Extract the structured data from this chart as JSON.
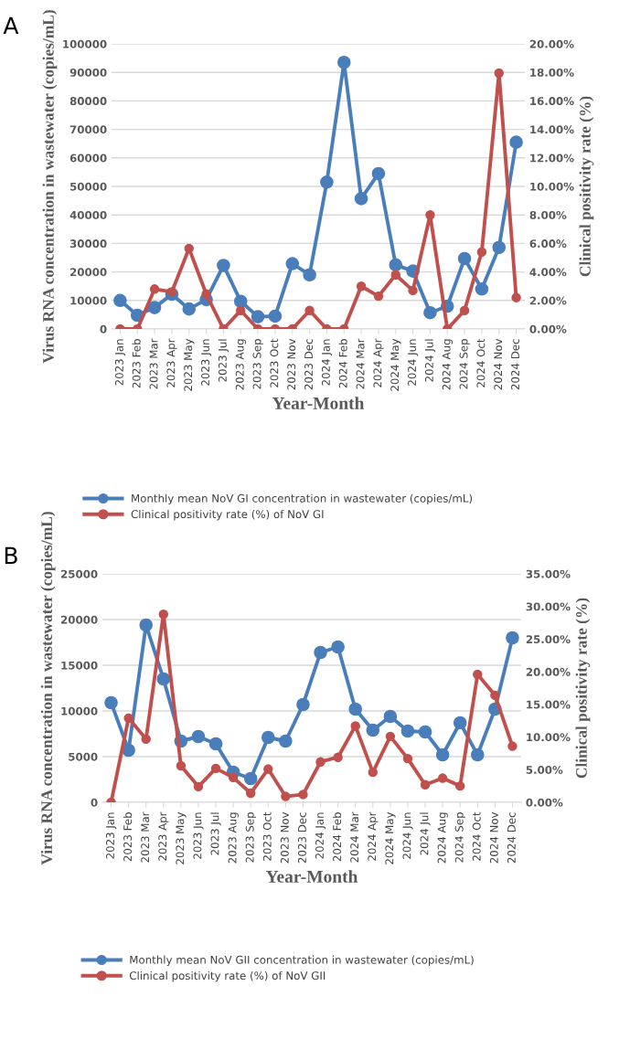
{
  "chart_data": [
    {
      "type": "line",
      "annotations": [
        "A"
      ],
      "xlabel": "Year-Month",
      "ylabel": "Virus RNA concentration in wastewater (copies/mL)",
      "y2label": "Clinical positivity rate (%)",
      "categories": [
        "2023 Jan",
        "2023 Feb",
        "2023 Mar",
        "2023 Apr",
        "2023 May",
        "2023 Jun",
        "2023 Jul",
        "2023 Aug",
        "2023 Sep",
        "2023 Oct",
        "2023 Nov",
        "2023 Dec",
        "2024 Jan",
        "2024 Feb",
        "2024 Mar",
        "2024 Apr",
        "2024 May",
        "2024 Jun",
        "2024 Jul",
        "2024 Aug",
        "2024 Sep",
        "2024 Oct",
        "2024 Nov",
        "2024 Dec"
      ],
      "series": [
        {
          "name": "Monthly mean NoV GI concentration in wastewater (copies/mL)",
          "color": "#4a7ebb",
          "values": [
            10000,
            4800,
            7500,
            12200,
            7000,
            10300,
            22300,
            9700,
            4300,
            4500,
            22900,
            19000,
            51500,
            93500,
            45700,
            54500,
            22500,
            20300,
            5700,
            8000,
            24700,
            14000,
            28600,
            65500
          ]
        },
        {
          "name": "Clinical positivity rate (%) of NoV GI",
          "color": "#c0504d",
          "axis": "y2",
          "values": [
            0,
            0,
            2.8,
            2.6,
            5.65,
            2.45,
            0,
            1.3,
            0,
            0,
            0,
            1.3,
            0,
            0,
            3.0,
            2.3,
            3.8,
            2.7,
            8.0,
            0,
            1.3,
            5.4,
            17.95,
            2.2
          ]
        }
      ],
      "ylim": [
        0,
        100000
      ],
      "yticks": [
        0,
        10000,
        20000,
        30000,
        40000,
        50000,
        60000,
        70000,
        80000,
        90000,
        100000
      ],
      "y2lim": [
        0,
        20
      ],
      "y2ticks": [
        {
          "value": 0,
          "label": "0.00%"
        },
        {
          "value": 2,
          "label": "2.00%"
        },
        {
          "value": 4,
          "label": "4.00%"
        },
        {
          "value": 6,
          "label": "6.00%"
        },
        {
          "value": 8,
          "label": "8.00%"
        },
        {
          "value": 10,
          "label": "10.00%"
        },
        {
          "value": 12,
          "label": "12.00%"
        },
        {
          "value": 14,
          "label": "14.00%"
        },
        {
          "value": 16,
          "label": "16.00%"
        },
        {
          "value": 18,
          "label": "18.00%"
        },
        {
          "value": 20,
          "label": "20.00%"
        }
      ],
      "grid": "y",
      "legend": "bottom",
      "marker": "circle",
      "line_style": "solid"
    },
    {
      "type": "line",
      "annotations": [
        "B"
      ],
      "xlabel": "Year-Month",
      "ylabel": "Virus RNA concentration in wastewater (copies/mL)",
      "y2label": "Clinical positivity rate (%)",
      "categories": [
        "2023 Jan",
        "2023 Feb",
        "2023 Mar",
        "2023 Apr",
        "2023 May",
        "2023 Jun",
        "2023 Jul",
        "2023 Aug",
        "2023 Sep",
        "2023 Oct",
        "2023 Nov",
        "2023 Dec",
        "2024 Jan",
        "2024 Feb",
        "2024 Mar",
        "2024 Apr",
        "2024 May",
        "2024 Jun",
        "2024 Jul",
        "2024 Aug",
        "2024 Sep",
        "2024 Oct",
        "2024 Nov",
        "2024 Dec"
      ],
      "series": [
        {
          "name": "Monthly mean NoV GII concentration in wastewater (copies/mL)",
          "color": "#4a7ebb",
          "values": [
            10900,
            5700,
            19400,
            13500,
            6700,
            7200,
            6400,
            3300,
            2600,
            7100,
            6700,
            10700,
            16400,
            17000,
            10200,
            7900,
            9400,
            7800,
            7700,
            5200,
            8700,
            5200,
            10200,
            18000
          ]
        },
        {
          "name": "Clinical positivity rate (%) of NoV GII",
          "color": "#c0504d",
          "axis": "y2",
          "values": [
            0,
            12.9,
            9.7,
            28.8,
            5.6,
            2.4,
            5.2,
            3.8,
            1.4,
            5.1,
            0.9,
            1.2,
            6.2,
            6.9,
            11.7,
            4.6,
            10.1,
            6.7,
            2.7,
            3.7,
            2.5,
            19.6,
            16.4,
            8.6
          ]
        }
      ],
      "ylim": [
        0,
        25000
      ],
      "yticks": [
        0,
        5000,
        10000,
        15000,
        20000,
        25000
      ],
      "y2lim": [
        0,
        35
      ],
      "y2ticks": [
        {
          "value": 0,
          "label": "0.00%"
        },
        {
          "value": 5,
          "label": "5.00%"
        },
        {
          "value": 10,
          "label": "10.00%"
        },
        {
          "value": 15,
          "label": "15.00%"
        },
        {
          "value": 20,
          "label": "20.00%"
        },
        {
          "value": 25,
          "label": "25.00%"
        },
        {
          "value": 30,
          "label": "30.00%"
        },
        {
          "value": 35,
          "label": "35.00%"
        }
      ],
      "grid": "y",
      "legend": "bottom",
      "marker": "circle",
      "line_style": "solid"
    }
  ]
}
